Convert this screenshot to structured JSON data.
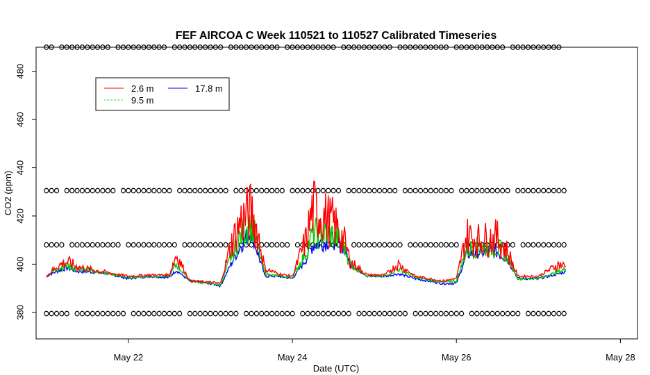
{
  "chart_data": {
    "type": "line",
    "title": "FEF AIRCOA C  Week 110521 to 110527  Calibrated Timeseries",
    "xlabel": "Date (UTC)",
    "ylabel": "CO2 (ppm)",
    "xlim": [
      "2011-05-20T21:00",
      "2011-05-28T05:00"
    ],
    "ylim": [
      369,
      490
    ],
    "x_ticks": [
      {
        "label": "May 22",
        "date": "2011-05-22T00:00"
      },
      {
        "label": "May 24",
        "date": "2011-05-24T00:00"
      },
      {
        "label": "May 26",
        "date": "2011-05-26T00:00"
      },
      {
        "label": "May 28",
        "date": "2011-05-28T00:00"
      }
    ],
    "y_ticks": [
      380,
      400,
      420,
      440,
      460,
      480
    ],
    "legend": {
      "position": "top-left",
      "entries": [
        {
          "label": "2.6 m",
          "color": "#ff0000"
        },
        {
          "label": "9.5 m",
          "color": "#00cc00"
        },
        {
          "label": "17.8 m",
          "color": "#0000ff"
        }
      ]
    },
    "series": [
      {
        "name": "17.8 m",
        "color": "#0000ff",
        "points": [
          [
            "2011-05-21T00:00",
            395
          ],
          [
            "2011-05-21T03:00",
            397
          ],
          [
            "2011-05-21T06:00",
            398.5
          ],
          [
            "2011-05-21T09:00",
            397
          ],
          [
            "2011-05-21T12:00",
            397
          ],
          [
            "2011-05-21T18:00",
            396
          ],
          [
            "2011-05-22T00:00",
            394
          ],
          [
            "2011-05-22T06:00",
            395
          ],
          [
            "2011-05-22T12:00",
            394.5
          ],
          [
            "2011-05-22T14:00",
            397.5
          ],
          [
            "2011-05-22T18:00",
            393
          ],
          [
            "2011-05-23T00:00",
            392
          ],
          [
            "2011-05-23T03:00",
            391
          ],
          [
            "2011-05-23T06:00",
            400
          ],
          [
            "2011-05-23T09:00",
            408
          ],
          [
            "2011-05-23T12:00",
            414
          ],
          [
            "2011-05-23T14:00",
            404
          ],
          [
            "2011-05-23T16:00",
            395
          ],
          [
            "2011-05-23T20:00",
            395
          ],
          [
            "2011-05-24T00:00",
            394
          ],
          [
            "2011-05-24T04:00",
            402
          ],
          [
            "2011-05-24T06:00",
            408
          ],
          [
            "2011-05-24T12:00",
            410
          ],
          [
            "2011-05-24T15:00",
            407
          ],
          [
            "2011-05-24T17:00",
            400
          ],
          [
            "2011-05-24T22:00",
            395
          ],
          [
            "2011-05-25T03:00",
            395
          ],
          [
            "2011-05-25T07:00",
            396
          ],
          [
            "2011-05-25T12:00",
            394
          ],
          [
            "2011-05-25T20:00",
            392
          ],
          [
            "2011-05-26T00:00",
            392
          ],
          [
            "2011-05-26T03:00",
            404
          ],
          [
            "2011-05-26T06:00",
            405
          ],
          [
            "2011-05-26T12:00",
            405
          ],
          [
            "2011-05-26T15:00",
            402
          ],
          [
            "2011-05-26T18:00",
            394
          ],
          [
            "2011-05-27T00:00",
            394
          ],
          [
            "2011-05-27T06:00",
            396
          ],
          [
            "2011-05-27T08:00",
            397
          ]
        ]
      },
      {
        "name": "9.5 m",
        "color": "#00cc00",
        "points": [
          [
            "2011-05-21T00:00",
            395
          ],
          [
            "2011-05-21T03:00",
            398
          ],
          [
            "2011-05-21T06:00",
            399.5
          ],
          [
            "2011-05-21T09:00",
            398
          ],
          [
            "2011-05-21T12:00",
            397.5
          ],
          [
            "2011-05-21T18:00",
            396
          ],
          [
            "2011-05-22T00:00",
            394.5
          ],
          [
            "2011-05-22T06:00",
            395
          ],
          [
            "2011-05-22T12:00",
            395
          ],
          [
            "2011-05-22T14:00",
            400
          ],
          [
            "2011-05-22T18:00",
            393
          ],
          [
            "2011-05-23T00:00",
            392
          ],
          [
            "2011-05-23T03:00",
            391.5
          ],
          [
            "2011-05-23T06:00",
            403
          ],
          [
            "2011-05-23T09:00",
            412
          ],
          [
            "2011-05-23T12:00",
            418
          ],
          [
            "2011-05-23T14:00",
            406
          ],
          [
            "2011-05-23T16:00",
            396
          ],
          [
            "2011-05-23T20:00",
            395
          ],
          [
            "2011-05-24T00:00",
            394.5
          ],
          [
            "2011-05-24T04:00",
            405
          ],
          [
            "2011-05-24T06:00",
            413
          ],
          [
            "2011-05-24T12:00",
            412
          ],
          [
            "2011-05-24T15:00",
            408
          ],
          [
            "2011-05-24T17:00",
            400
          ],
          [
            "2011-05-24T22:00",
            395
          ],
          [
            "2011-05-25T03:00",
            395
          ],
          [
            "2011-05-25T07:00",
            398
          ],
          [
            "2011-05-25T12:00",
            394.5
          ],
          [
            "2011-05-25T20:00",
            392.5
          ],
          [
            "2011-05-26T00:00",
            393
          ],
          [
            "2011-05-26T03:00",
            406
          ],
          [
            "2011-05-26T06:00",
            407
          ],
          [
            "2011-05-26T12:00",
            407
          ],
          [
            "2011-05-26T15:00",
            403
          ],
          [
            "2011-05-26T18:00",
            394
          ],
          [
            "2011-05-27T00:00",
            394
          ],
          [
            "2011-05-27T06:00",
            397
          ],
          [
            "2011-05-27T08:00",
            398
          ]
        ]
      },
      {
        "name": "2.6 m",
        "color": "#ff0000",
        "points": [
          [
            "2011-05-21T00:00",
            395
          ],
          [
            "2011-05-21T03:00",
            399
          ],
          [
            "2011-05-21T06:00",
            401
          ],
          [
            "2011-05-21T09:00",
            399
          ],
          [
            "2011-05-21T12:00",
            398
          ],
          [
            "2011-05-21T18:00",
            396.5
          ],
          [
            "2011-05-22T00:00",
            395
          ],
          [
            "2011-05-22T06:00",
            395.5
          ],
          [
            "2011-05-22T12:00",
            395.5
          ],
          [
            "2011-05-22T14:00",
            404
          ],
          [
            "2011-05-22T18:00",
            393
          ],
          [
            "2011-05-23T00:00",
            392.5
          ],
          [
            "2011-05-23T03:00",
            392
          ],
          [
            "2011-05-23T06:00",
            408
          ],
          [
            "2011-05-23T09:00",
            418
          ],
          [
            "2011-05-23T12:00",
            422
          ],
          [
            "2011-05-23T14:00",
            412
          ],
          [
            "2011-05-23T16:00",
            398
          ],
          [
            "2011-05-23T20:00",
            396
          ],
          [
            "2011-05-24T00:00",
            395
          ],
          [
            "2011-05-24T04:00",
            410
          ],
          [
            "2011-05-24T06:00",
            423
          ],
          [
            "2011-05-24T12:00",
            417
          ],
          [
            "2011-05-24T15:00",
            410
          ],
          [
            "2011-05-24T17:00",
            401
          ],
          [
            "2011-05-24T22:00",
            395.5
          ],
          [
            "2011-05-25T03:00",
            395.5
          ],
          [
            "2011-05-25T07:00",
            400
          ],
          [
            "2011-05-25T12:00",
            395
          ],
          [
            "2011-05-25T20:00",
            393
          ],
          [
            "2011-05-26T00:00",
            394
          ],
          [
            "2011-05-26T03:00",
            412
          ],
          [
            "2011-05-26T06:00",
            410
          ],
          [
            "2011-05-26T12:00",
            411
          ],
          [
            "2011-05-26T15:00",
            405
          ],
          [
            "2011-05-26T18:00",
            395
          ],
          [
            "2011-05-27T00:00",
            395
          ],
          [
            "2011-05-27T06:00",
            400
          ],
          [
            "2011-05-27T08:00",
            399
          ]
        ]
      },
      {
        "name": "",
        "type": "scatter",
        "marker": "open-circle",
        "color": "#000000",
        "levels_ppm": [
          379.5,
          408,
          430.5,
          490
        ],
        "x_range": [
          "2011-05-21T00:00",
          "2011-05-27T08:00"
        ],
        "interval_hours": 1.5
      }
    ]
  }
}
